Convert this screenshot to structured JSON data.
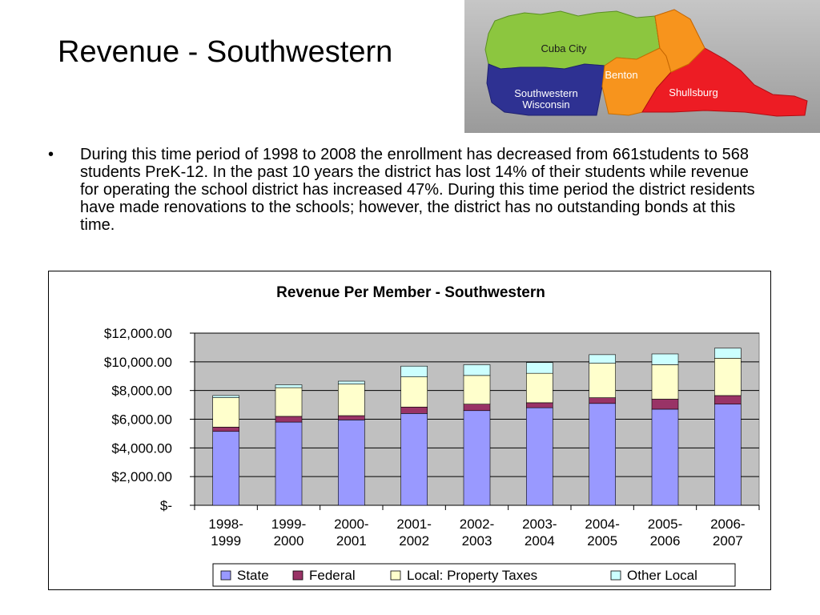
{
  "slide": {
    "title": "Revenue - Southwestern",
    "bullet": "During this time period of 1998 to 2008 the enrollment has decreased from 661students to 568 students PreK-12.  In the past 10 years the district has lost 14% of their students while revenue for operating the school district has increased 47%.  During this time period the district residents have made renovations to the schools; however, the district has no outstanding bonds at this time."
  },
  "map": {
    "labels": {
      "cuba_city": "Cuba City",
      "benton": "Benton",
      "shullsburg": "Shullsburg",
      "southwestern_line1": "Southwestern",
      "southwestern_line2": "Wisconsin"
    },
    "colors": {
      "cuba_city": "#8cc63f",
      "benton": "#f7941d",
      "shullsburg": "#ed1c24",
      "southwestern": "#2e3192",
      "background": "#b3b3b3"
    }
  },
  "chart_data": {
    "type": "bar",
    "stacked": true,
    "title": "Revenue Per Member - Southwestern",
    "categories": [
      [
        "1998-",
        "1999"
      ],
      [
        "1999-",
        "2000"
      ],
      [
        "2000-",
        "2001"
      ],
      [
        "2001-",
        "2002"
      ],
      [
        "2002-",
        "2003"
      ],
      [
        "2003-",
        "2004"
      ],
      [
        "2004-",
        "2005"
      ],
      [
        "2005-",
        "2006"
      ],
      [
        "2006-",
        "2007"
      ]
    ],
    "series": [
      {
        "name": "State",
        "color": "#9999ff",
        "values": [
          5150,
          5800,
          5950,
          6400,
          6600,
          6800,
          7100,
          6700,
          7050
        ]
      },
      {
        "name": "Federal",
        "color": "#993366",
        "values": [
          300,
          400,
          300,
          450,
          450,
          350,
          400,
          700,
          600
        ]
      },
      {
        "name": "Local: Property Taxes",
        "color": "#ffffcc",
        "values": [
          2050,
          2000,
          2200,
          2100,
          2000,
          2050,
          2400,
          2400,
          2600
        ]
      },
      {
        "name": "Other Local",
        "color": "#ccffff",
        "values": [
          150,
          200,
          200,
          750,
          750,
          750,
          600,
          750,
          700
        ]
      }
    ],
    "ylim": [
      0,
      12000
    ],
    "y_ticks": [
      {
        "value": 0,
        "label": "$-"
      },
      {
        "value": 2000,
        "label": "$2,000.00"
      },
      {
        "value": 4000,
        "label": "$4,000.00"
      },
      {
        "value": 6000,
        "label": "$6,000.00"
      },
      {
        "value": 8000,
        "label": "$8,000.00"
      },
      {
        "value": 10000,
        "label": "$10,000.00"
      },
      {
        "value": 12000,
        "label": "$12,000.00"
      }
    ],
    "grid": true,
    "plot_background": "#c0c0c0",
    "legend_position": "bottom",
    "xlabel": "",
    "ylabel": ""
  }
}
